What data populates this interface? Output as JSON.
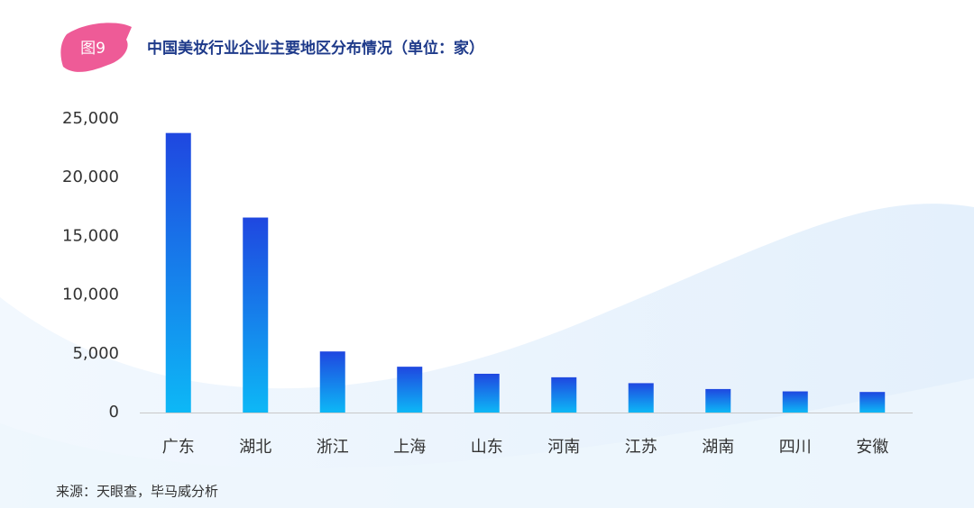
{
  "figure_label": "图9",
  "source": "来源：天眼查，毕马威分析",
  "chart_data": {
    "type": "bar",
    "title": "中国美妆行业企业主要地区分布情况（单位：家）",
    "categories": [
      "广东",
      "湖北",
      "浙江",
      "上海",
      "山东",
      "河南",
      "江苏",
      "湖南",
      "四川",
      "安徽"
    ],
    "values": [
      23800,
      16600,
      5200,
      3900,
      3300,
      3000,
      2500,
      2000,
      1800,
      1750
    ],
    "color": [
      "#1f47e0",
      "#0db8f6"
    ],
    "ylim": [
      0,
      25000
    ],
    "yticks": [
      0,
      {
        "value": 5000,
        "label": "5,000"
      },
      {
        "value": 10000,
        "label": "10,000"
      },
      {
        "value": 15000,
        "label": "15,000"
      },
      {
        "value": 20000,
        "label": "20,000"
      },
      {
        "value": 25000,
        "label": "25,000"
      }
    ],
    "grid": false
  }
}
